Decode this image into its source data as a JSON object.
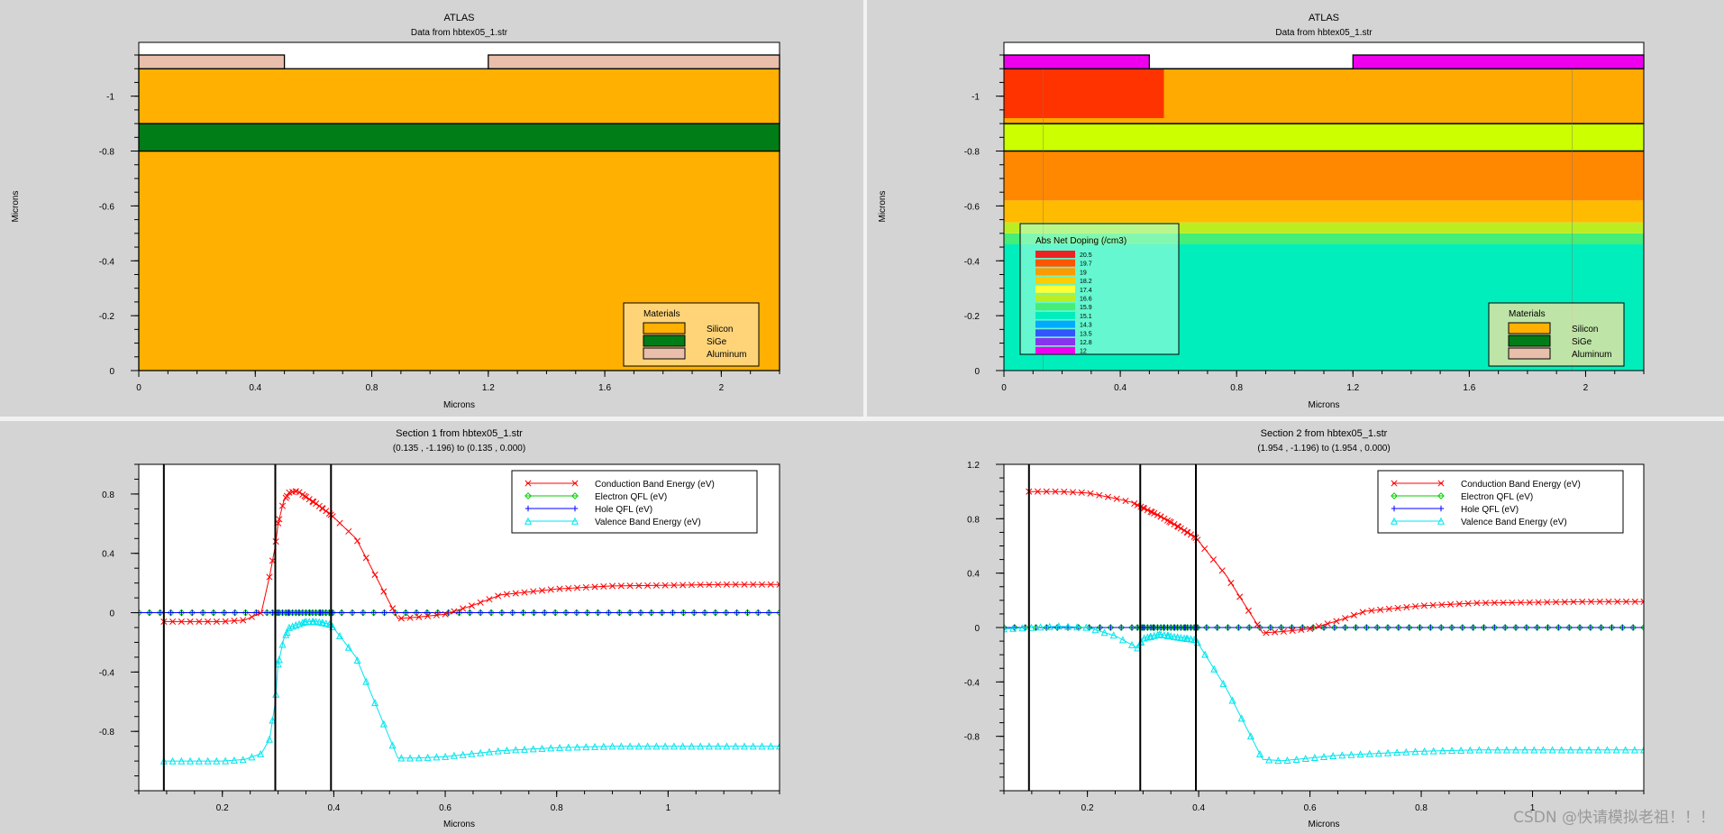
{
  "colors": {
    "silicon": "#ffb000",
    "sige": "#007d17",
    "aluminum": "#e9bfab",
    "conduction": "#ff0000",
    "electron_qfl": "#00cc00",
    "hole_qfl": "#0000ff",
    "valence": "#00e5ee",
    "electrode_magenta": "#ee00ee"
  },
  "watermark": "CSDN @快请模拟老祖！！！",
  "chart_data": [
    {
      "id": "structure",
      "type": "heatmap",
      "title": "ATLAS",
      "subtitle": "Data from hbtex05_1.str",
      "xlabel": "Microns",
      "ylabel": "Microns",
      "xlim": [
        0,
        2.2
      ],
      "ylim": [
        0,
        -1.196
      ],
      "xticks": [
        "0",
        "0.4",
        "0.8",
        "1.2",
        "1.6",
        "2"
      ],
      "xtick_values": [
        0,
        0.4,
        0.8,
        1.2,
        1.6,
        2
      ],
      "yticks": [
        "0",
        "-0.2",
        "-0.4",
        "-0.6",
        "-0.8",
        "-1"
      ],
      "ytick_values": [
        0,
        -0.2,
        -0.4,
        -0.6,
        -0.8,
        -1
      ],
      "regions": [
        {
          "material": "Silicon",
          "x": [
            0,
            2.2
          ],
          "y": [
            0,
            -0.8
          ]
        },
        {
          "material": "SiGe",
          "x": [
            0,
            2.2
          ],
          "y": [
            -0.8,
            -0.9
          ]
        },
        {
          "material": "Silicon",
          "x": [
            0,
            2.2
          ],
          "y": [
            -0.9,
            -1.1
          ]
        },
        {
          "material": "Aluminum",
          "x": [
            0,
            0.5
          ],
          "y": [
            -1.1,
            -1.15
          ]
        },
        {
          "material": "Aluminum",
          "x": [
            1.2,
            2.2
          ],
          "y": [
            -1.1,
            -1.15
          ]
        }
      ],
      "legend": {
        "title": "Materials",
        "items": [
          "Silicon",
          "SiGe",
          "Aluminum"
        ],
        "position": "bottom-right"
      }
    },
    {
      "id": "doping",
      "type": "heatmap",
      "title": "ATLAS",
      "subtitle": "Data from hbtex05_1.str",
      "xlabel": "Microns",
      "ylabel": "Microns",
      "xlim": [
        0,
        2.2
      ],
      "ylim": [
        0,
        -1.196
      ],
      "xticks": [
        "0",
        "0.4",
        "0.8",
        "1.2",
        "1.6",
        "2"
      ],
      "xtick_values": [
        0,
        0.4,
        0.8,
        1.2,
        1.6,
        2
      ],
      "yticks": [
        "0",
        "-0.2",
        "-0.4",
        "-0.6",
        "-0.8",
        "-1"
      ],
      "ytick_values": [
        0,
        -0.2,
        -0.4,
        -0.6,
        -0.8,
        -1
      ],
      "doping_bands": [
        {
          "y": [
            0,
            -0.46
          ],
          "color": "#00eebb"
        },
        {
          "y": [
            -0.46,
            -0.5
          ],
          "color": "#44ee77"
        },
        {
          "y": [
            -0.5,
            -0.54
          ],
          "color": "#bbee22"
        },
        {
          "y": [
            -0.54,
            -0.62
          ],
          "color": "#ffbb00"
        },
        {
          "y": [
            -0.62,
            -0.8
          ],
          "color": "#ff8800"
        },
        {
          "y": [
            -0.8,
            -0.9
          ],
          "color": "#ccff00"
        },
        {
          "y": [
            -0.9,
            -1.1
          ],
          "color": "#ffaa00"
        }
      ],
      "emitter_region": {
        "x": [
          0,
          0.55
        ],
        "y": [
          -0.92,
          -1.1
        ],
        "color": "#ff3300"
      },
      "electrodes": [
        {
          "x": [
            0,
            0.5
          ]
        },
        {
          "x": [
            1.2,
            2.2
          ]
        }
      ],
      "cutlines": [
        0.135,
        1.954
      ],
      "doping_legend": {
        "title": "Abs Net Doping (/cm3)",
        "levels": [
          "20.5",
          "19.7",
          "19",
          "18.2",
          "17.4",
          "16.6",
          "15.9",
          "15.1",
          "14.3",
          "13.5",
          "12.8",
          "12"
        ],
        "colors": [
          "#ee2222",
          "#ff5500",
          "#ff9900",
          "#ffcc00",
          "#ffff33",
          "#bbee22",
          "#44ee77",
          "#00eebb",
          "#00aaff",
          "#3355ff",
          "#8833ee",
          "#ee00ee"
        ],
        "position": "bottom-left"
      },
      "legend": {
        "title": "Materials",
        "items": [
          "Silicon",
          "SiGe",
          "Aluminum"
        ],
        "position": "bottom-right"
      }
    },
    {
      "id": "section1",
      "type": "line",
      "title": "Section 1 from hbtex05_1.str",
      "subtitle": "(0.135 , -1.196) to (0.135 , 0.000)",
      "xlabel": "Microns",
      "xlim": [
        0.05,
        1.2
      ],
      "ylim": [
        -1.2,
        1.0
      ],
      "xticks": [
        "0.2",
        "0.4",
        "0.6",
        "0.8",
        "1"
      ],
      "xtick_values": [
        0.2,
        0.4,
        0.6,
        0.8,
        1.0
      ],
      "yticks": [
        "0.8",
        "0.4",
        "0",
        "-0.4",
        "-0.8"
      ],
      "ytick_values": [
        0.8,
        0.4,
        0,
        -0.4,
        -0.8
      ],
      "vlines": [
        0.095,
        0.295,
        0.395
      ],
      "series": [
        {
          "name": "Conduction Band Energy (eV)",
          "color": "#ff0000",
          "marker": "x",
          "x": [
            0.095,
            0.15,
            0.2,
            0.24,
            0.27,
            0.285,
            0.295,
            0.3,
            0.31,
            0.32,
            0.335,
            0.35,
            0.37,
            0.395,
            0.44,
            0.515,
            0.55,
            0.6,
            0.65,
            0.7,
            0.8,
            0.9,
            1.0,
            1.1,
            1.2
          ],
          "y": [
            -0.06,
            -0.06,
            -0.06,
            -0.05,
            0.0,
            0.25,
            0.45,
            0.6,
            0.75,
            0.81,
            0.82,
            0.78,
            0.73,
            0.66,
            0.5,
            -0.04,
            -0.03,
            -0.01,
            0.05,
            0.12,
            0.16,
            0.18,
            0.185,
            0.19,
            0.19
          ]
        },
        {
          "name": "Electron QFL (eV)",
          "color": "#00cc00",
          "marker": "diamond",
          "x": [
            0.05,
            0.2,
            0.4,
            0.6,
            0.8,
            1.0,
            1.2
          ],
          "y": [
            0,
            0,
            0,
            0,
            0,
            0,
            0
          ]
        },
        {
          "name": "Hole QFL (eV)",
          "color": "#0000ff",
          "marker": "plus",
          "x": [
            0.05,
            0.2,
            0.4,
            0.6,
            0.8,
            1.0,
            1.2
          ],
          "y": [
            0,
            0,
            0,
            0,
            0,
            0,
            0
          ]
        },
        {
          "name": "Valence Band Energy (eV)",
          "color": "#00e5ee",
          "marker": "triangle",
          "x": [
            0.095,
            0.15,
            0.2,
            0.24,
            0.27,
            0.285,
            0.295,
            0.3,
            0.31,
            0.32,
            0.335,
            0.35,
            0.37,
            0.395,
            0.44,
            0.515,
            0.55,
            0.6,
            0.65,
            0.7,
            0.8,
            0.9,
            1.0,
            1.1,
            1.2
          ],
          "y": [
            -1.0,
            -1.0,
            -1.0,
            -0.99,
            -0.95,
            -0.85,
            -0.6,
            -0.35,
            -0.18,
            -0.1,
            -0.08,
            -0.06,
            -0.06,
            -0.08,
            -0.3,
            -0.98,
            -0.98,
            -0.97,
            -0.95,
            -0.93,
            -0.91,
            -0.9,
            -0.9,
            -0.9,
            -0.9
          ]
        }
      ],
      "legend_position": "top-right"
    },
    {
      "id": "section2",
      "type": "line",
      "title": "Section 2 from hbtex05_1.str",
      "subtitle": "(1.954 , -1.196) to (1.954 , 0.000)",
      "xlabel": "Microns",
      "xlim": [
        0.05,
        1.2
      ],
      "ylim": [
        -1.2,
        1.2
      ],
      "xticks": [
        "0.2",
        "0.4",
        "0.6",
        "0.8",
        "1"
      ],
      "xtick_values": [
        0.2,
        0.4,
        0.6,
        0.8,
        1.0
      ],
      "yticks": [
        "1.2",
        "0.8",
        "0.4",
        "0",
        "-0.4",
        "-0.8"
      ],
      "ytick_values": [
        1.2,
        0.8,
        0.4,
        0,
        -0.4,
        -0.8
      ],
      "vlines": [
        0.095,
        0.295,
        0.395
      ],
      "series": [
        {
          "name": "Conduction Band Energy (eV)",
          "color": "#ff0000",
          "marker": "x",
          "x": [
            0.095,
            0.15,
            0.2,
            0.25,
            0.28,
            0.3,
            0.33,
            0.36,
            0.395,
            0.45,
            0.515,
            0.55,
            0.6,
            0.65,
            0.7,
            0.8,
            0.9,
            1.0,
            1.1,
            1.2
          ],
          "y": [
            1.0,
            1.0,
            0.99,
            0.95,
            0.92,
            0.88,
            0.82,
            0.75,
            0.66,
            0.38,
            -0.04,
            -0.03,
            -0.01,
            0.05,
            0.12,
            0.16,
            0.18,
            0.185,
            0.19,
            0.19
          ]
        },
        {
          "name": "Electron QFL (eV)",
          "color": "#00cc00",
          "marker": "diamond",
          "x": [
            0.05,
            0.2,
            0.4,
            0.6,
            0.8,
            1.0,
            1.2
          ],
          "y": [
            0,
            0,
            0,
            0,
            0,
            0,
            0
          ]
        },
        {
          "name": "Hole QFL (eV)",
          "color": "#0000ff",
          "marker": "plus",
          "x": [
            0.05,
            0.2,
            0.4,
            0.6,
            0.8,
            1.0,
            1.2
          ],
          "y": [
            0,
            0,
            0,
            0,
            0,
            0,
            0
          ]
        },
        {
          "name": "Valence Band Energy (eV)",
          "color": "#00e5ee",
          "marker": "triangle",
          "x": [
            0.05,
            0.1,
            0.15,
            0.2,
            0.25,
            0.29,
            0.3,
            0.33,
            0.36,
            0.395,
            0.45,
            0.515,
            0.55,
            0.6,
            0.65,
            0.7,
            0.8,
            0.9,
            1.0,
            1.1,
            1.2
          ],
          "y": [
            -0.01,
            0.0,
            0.01,
            0.0,
            -0.06,
            -0.15,
            -0.08,
            -0.05,
            -0.07,
            -0.09,
            -0.45,
            -0.97,
            -0.98,
            -0.96,
            -0.94,
            -0.93,
            -0.91,
            -0.9,
            -0.9,
            -0.9,
            -0.9
          ]
        }
      ],
      "legend_position": "top-right"
    }
  ]
}
